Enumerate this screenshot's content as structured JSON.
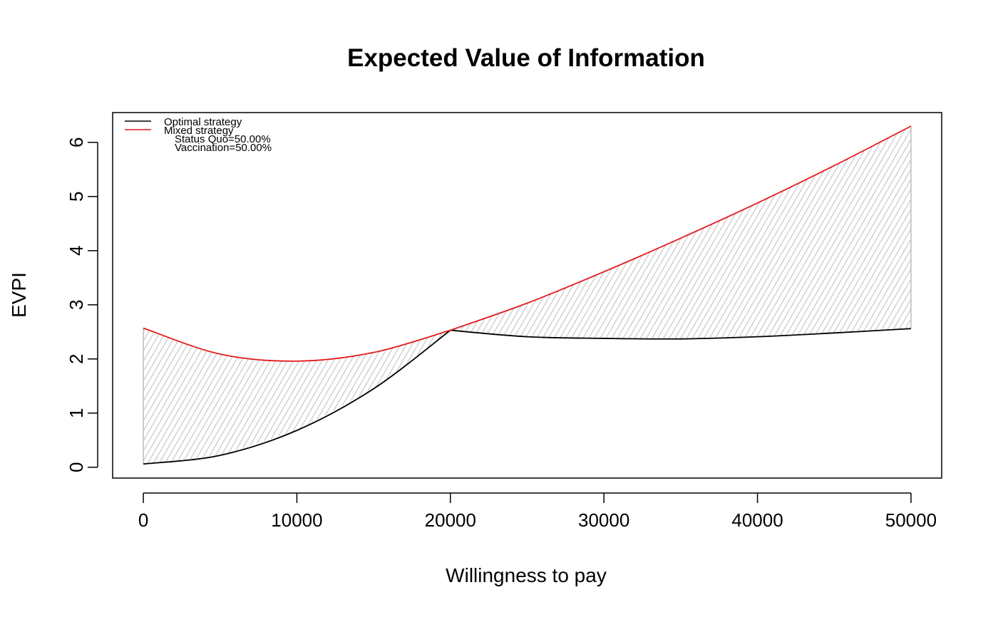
{
  "chart_data": {
    "type": "line",
    "title": "Expected Value of Information",
    "xlabel": "Willingness to pay",
    "ylabel": "EVPI",
    "xlim": [
      -2000,
      52000
    ],
    "ylim": [
      -0.2,
      6.55
    ],
    "x_ticks": [
      0,
      10000,
      20000,
      30000,
      40000,
      50000
    ],
    "x_tick_labels": [
      "0",
      "10000",
      "20000",
      "30000",
      "40000",
      "50000"
    ],
    "y_ticks": [
      0,
      1,
      2,
      3,
      4,
      5,
      6
    ],
    "y_tick_labels": [
      "0",
      "1",
      "2",
      "3",
      "4",
      "5",
      "6"
    ],
    "grid": false,
    "legend_position": "top-left",
    "x": [
      0,
      5000,
      10000,
      15000,
      20000,
      25000,
      30000,
      35000,
      40000,
      45000,
      50000
    ],
    "series": [
      {
        "name": "Optimal strategy",
        "color": "#000000",
        "values": [
          0.06,
          0.22,
          0.68,
          1.45,
          2.53,
          2.41,
          2.38,
          2.37,
          2.41,
          2.48,
          2.56
        ]
      },
      {
        "name": "Mixed strategy",
        "color": "#e41a1c",
        "values": [
          2.57,
          2.09,
          1.96,
          2.12,
          2.53,
          3.03,
          3.61,
          4.23,
          4.88,
          5.57,
          6.3
        ]
      }
    ],
    "fill_between": {
      "series": [
        "Optimal strategy",
        "Mixed strategy"
      ],
      "color": "#bdbdbd",
      "style": "hatched"
    },
    "legend_extra_lines": [
      "Status Quo=50.00%",
      "Vaccination=50.00%"
    ]
  }
}
